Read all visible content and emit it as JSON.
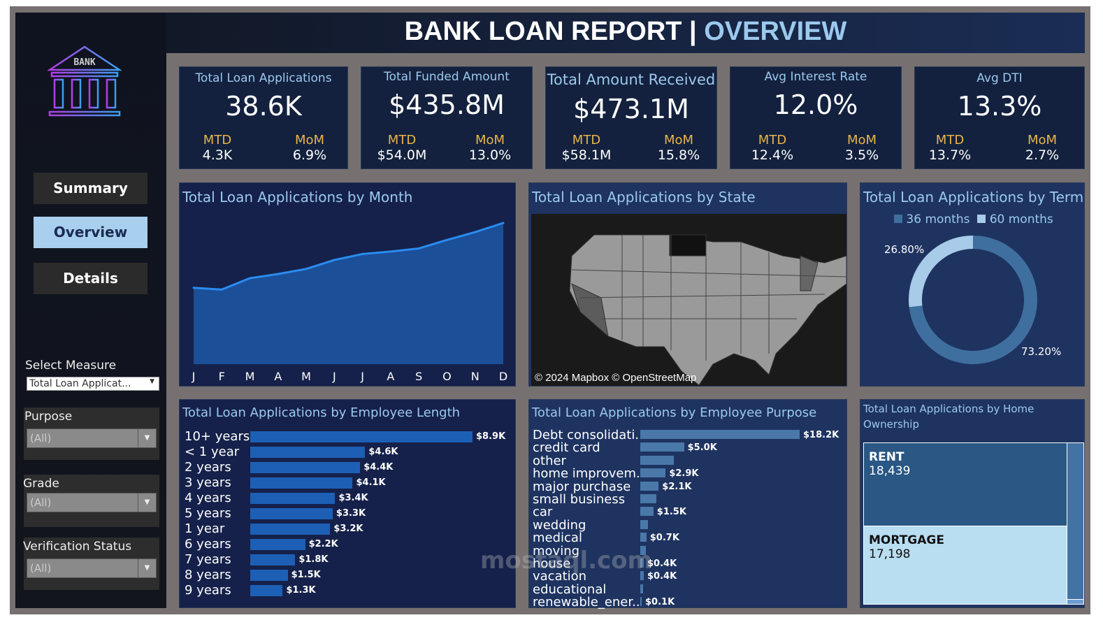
{
  "header": {
    "title_main": "BANK LOAN REPORT | ",
    "title_accent": "OVERVIEW"
  },
  "logo": {
    "text": "BANK"
  },
  "nav": [
    {
      "label": "Summary"
    },
    {
      "label": "Overview",
      "active": true
    },
    {
      "label": "Details"
    }
  ],
  "filters": {
    "measure": {
      "label": "Select Measure",
      "value": "Total Loan Applicat..."
    },
    "purpose": {
      "label": "Purpose",
      "value": "(All)"
    },
    "grade": {
      "label": "Grade",
      "value": "(All)"
    },
    "verification": {
      "label": "Verification Status",
      "value": "(All)"
    }
  },
  "kpis": [
    {
      "label": "Total Loan Applications",
      "value": "38.6K",
      "mtd_label": "MTD",
      "mtd": "4.3K",
      "mom_label": "MoM",
      "mom": "6.9%"
    },
    {
      "label": "Total Funded Amount",
      "value": "$435.8M",
      "mtd_label": "MTD",
      "mtd": "$54.0M",
      "mom_label": "MoM",
      "mom": "13.0%"
    },
    {
      "label": "Total Amount Received",
      "value": "$473.1M",
      "mtd_label": "MTD",
      "mtd": "$58.1M",
      "mom_label": "MoM",
      "mom": "15.8%"
    },
    {
      "label": "Avg Interest Rate",
      "value": "12.0%",
      "mtd_label": "MTD",
      "mtd": "12.4%",
      "mom_label": "MoM",
      "mom": "3.5%"
    },
    {
      "label": "Avg DTI",
      "value": "13.3%",
      "mtd_label": "MTD",
      "mtd": "13.7%",
      "mom_label": "MoM",
      "mom": "2.7%"
    }
  ],
  "colors": {
    "accent": "#9cc9ee",
    "kpi_sub": "#e8b54a",
    "bar": "#1d5fb5",
    "bar_purpose": "#4a78a8",
    "term36": "#3f6f9f",
    "term60": "#a7cbe8"
  },
  "chart_data": [
    {
      "type": "area",
      "title": "Total Loan Applications by Month",
      "categories": [
        "J",
        "F",
        "M",
        "A",
        "M",
        "J",
        "J",
        "A",
        "S",
        "O",
        "N",
        "D"
      ],
      "values": [
        2332,
        2279,
        2627,
        2755,
        2911,
        3184,
        3366,
        3441,
        3536,
        3796,
        4035,
        4314
      ],
      "ylim": [
        0,
        4314
      ]
    },
    {
      "type": "map",
      "title": "Total Loan Applications by State",
      "attribution": "© 2024 Mapbox © OpenStreetMap"
    },
    {
      "type": "pie",
      "title": "Total Loan Applications by Term",
      "legend": [
        "36 months",
        "60 months"
      ],
      "values": [
        73.2,
        26.8
      ],
      "labels": [
        "73.20%",
        "26.80%"
      ],
      "legend_position": "top"
    },
    {
      "type": "bar",
      "title": "Total Loan Applications by Employee Length",
      "categories": [
        "10+ years",
        "< 1 year",
        "2 years",
        "3 years",
        "4 years",
        "5 years",
        "1 year",
        "6 years",
        "7 years",
        "8 years",
        "9 years"
      ],
      "values": [
        8.9,
        4.6,
        4.4,
        4.1,
        3.4,
        3.3,
        3.2,
        2.2,
        1.8,
        1.5,
        1.3
      ],
      "labels": [
        "$8.9K",
        "$4.6K",
        "$4.4K",
        "$4.1K",
        "$3.4K",
        "$3.3K",
        "$3.2K",
        "$2.2K",
        "$1.8K",
        "$1.5K",
        "$1.3K"
      ]
    },
    {
      "type": "bar",
      "title": "Total Loan Applications by Employee Purpose",
      "categories": [
        "Debt consolidati..",
        "credit card",
        "other",
        "home improvem..",
        "major purchase",
        "small business",
        "car",
        "wedding",
        "medical",
        "moving",
        "house",
        "vacation",
        "educational",
        "renewable_ener.."
      ],
      "values": [
        18.2,
        5.0,
        3.8,
        2.9,
        2.1,
        1.8,
        1.5,
        0.9,
        0.7,
        0.6,
        0.4,
        0.4,
        0.3,
        0.1
      ],
      "labels": [
        "$18.2K",
        "$5.0K",
        "",
        "$2.9K",
        "$2.1K",
        "",
        "$1.5K",
        "",
        "$0.7K",
        "",
        "$0.4K",
        "$0.4K",
        "",
        "$0.1K"
      ]
    },
    {
      "type": "treemap",
      "title": "Total Loan Applications by Home Ownership",
      "items": [
        {
          "label": "RENT",
          "value": "18,439"
        },
        {
          "label": "MORTGAGE",
          "value": "17,198"
        }
      ]
    }
  ]
}
